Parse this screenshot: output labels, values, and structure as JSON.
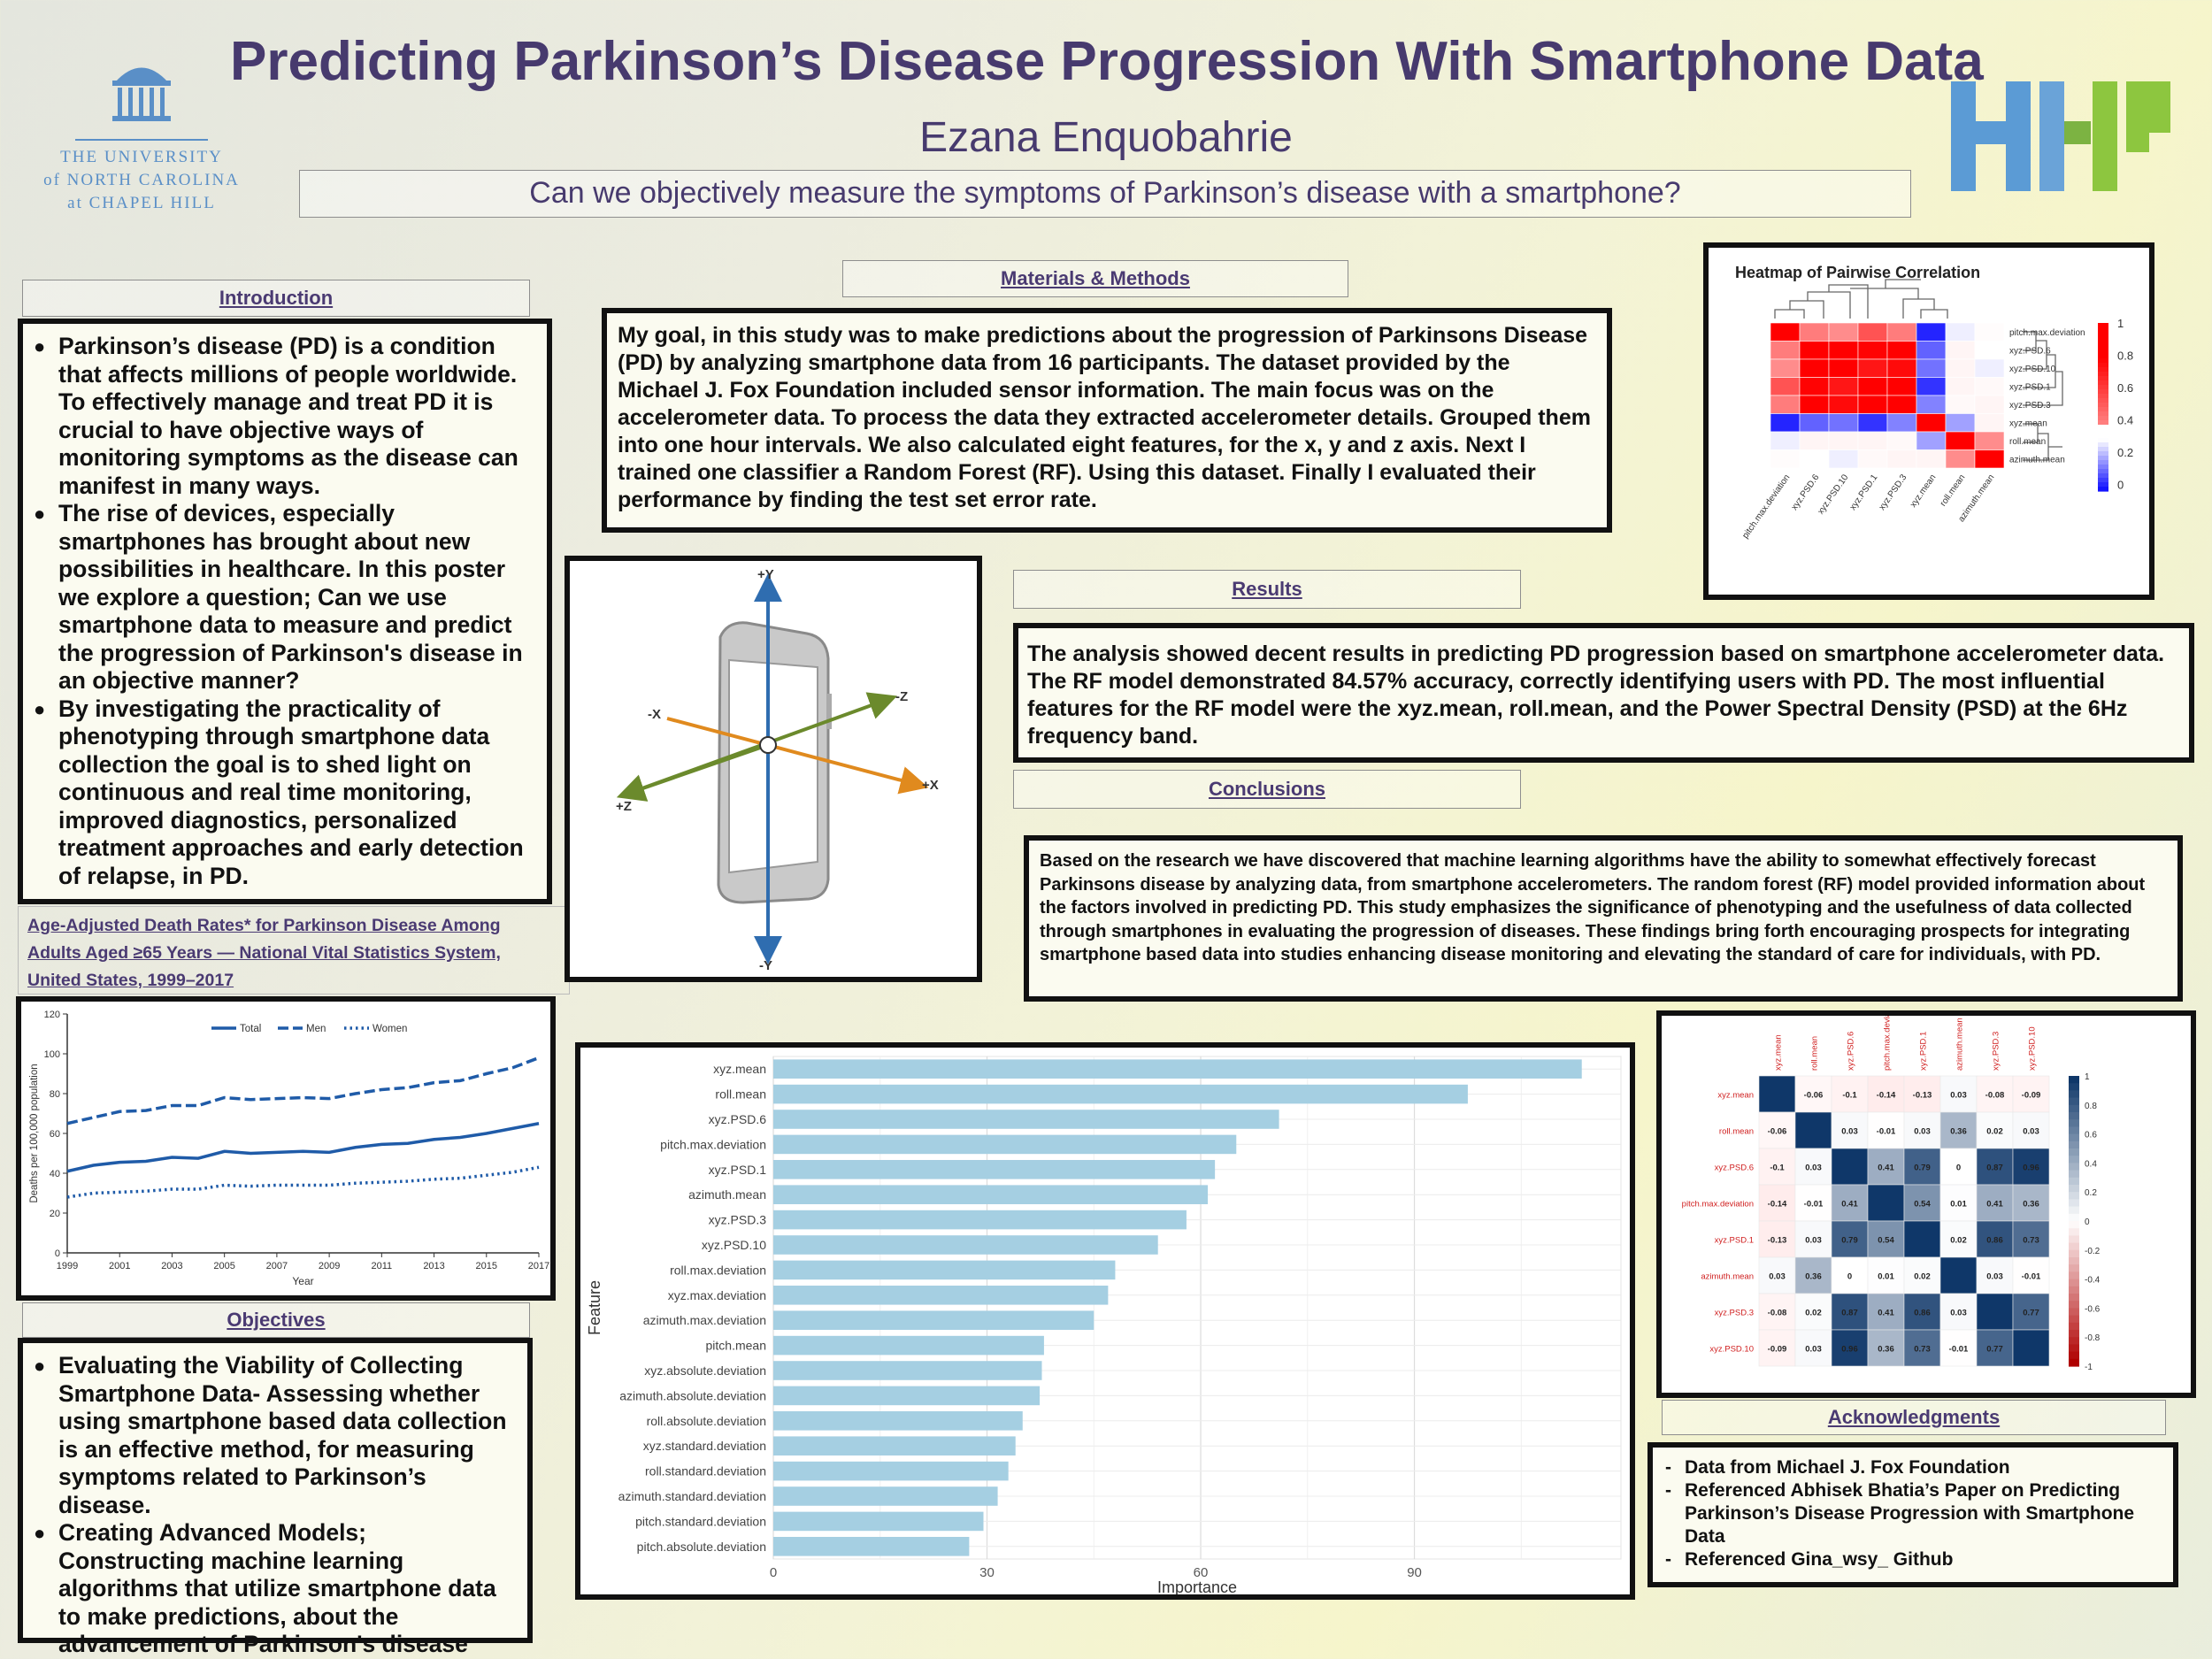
{
  "header": {
    "title": "Predicting Parkinson’s Disease Progression With Smartphone Data",
    "author": "Ezana Enquobahrie",
    "question": "Can we objectively measure the symptoms of Parkinson’s disease with a smartphone?",
    "unc_line1": "THE UNIVERSITY",
    "unc_line2": "of NORTH CAROLINA",
    "unc_line3": "at CHAPEL HILL",
    "colors": {
      "title": "#473a6e",
      "hhp_blue": "#5b9bd5",
      "hhp_green": "#8dc63f"
    }
  },
  "introduction": {
    "heading": "Introduction",
    "bullets": [
      "Parkinson’s disease (PD) is a condition that affects millions of people worldwide. To effectively manage and treat PD it is crucial to have objective ways of monitoring symptoms as the disease can manifest in many  ways.",
      "The rise of devices, especially smartphones has brought about new possibilities in healthcare. In this poster we explore a question; Can we use smartphone data to measure and predict the progression of Parkinson's disease in an objective manner?",
      "By investigating the practicality of phenotyping through smartphone data collection the goal is to shed light on continuous and real time monitoring, improved diagnostics, personalized treatment approaches and early detection of relapse, in PD."
    ]
  },
  "death_chart_caption": {
    "line1": "Age-Adjusted Death Rates* for Parkinson Disease Among",
    "line2": "Adults Aged ≥65 Years — National Vital Statistics System,",
    "line3": "United States, 1999–2017"
  },
  "materials": {
    "heading": "Materials & Methods",
    "text": "My goal, in this study was to make predictions about the progression of Parkinsons Disease (PD) by analyzing smartphone data from 16 participants. The dataset provided by the Michael J. Fox Foundation included sensor information. The main focus was on the accelerometer data. To process the data they extracted accelerometer details. Grouped them into one hour intervals. We also calculated eight features, for the x, y and z axis. Next I trained one classifier a  Random Forest (RF). Using this dataset. Finally I evaluated their performance by finding the test set error rate."
  },
  "phone_axes": {
    "y_top": "+Y",
    "y_bottom": "-Y",
    "x_left": "-X",
    "x_right": "+X",
    "z_left": "+Z",
    "z_right": "-Z"
  },
  "results": {
    "heading": "Results",
    "text": "The analysis showed decent results in predicting PD progression based on smartphone accelerometer data. The RF model demonstrated  84.57% accuracy, correctly identifying users with PD. The most influential features for the RF model were the xyz.mean, roll.mean, and the Power Spectral Density (PSD) at the 6Hz frequency band."
  },
  "conclusions": {
    "heading": "Conclusions",
    "text": "Based on the  research we have discovered that machine learning algorithms have the ability to somewhat  effectively forecast Parkinsons disease by analyzing data, from smartphone accelerometers. The random forest (RF) model provided information about the factors involved in predicting PD. This study emphasizes the significance of phenotyping and the usefulness of data collected through smartphones in evaluating the progression of diseases. These findings bring forth encouraging prospects for integrating smartphone based data into studies enhancing disease monitoring and elevating the standard of care for individuals, with PD."
  },
  "objectives": {
    "heading": "Objectives",
    "bullets": [
      "Evaluating the Viability of Collecting Smartphone Data- Assessing whether using smartphone based data collection is an effective method, for measuring symptoms related to Parkinson’s disease.",
      "Creating Advanced Models; Constructing machine learning algorithms that utilize smartphone data to make predictions, about the advancement of Parkinson's disease and its associated symptoms."
    ]
  },
  "acknowledgments": {
    "heading": "Acknowledgments",
    "items": [
      "Data from  Michael J. Fox Foundation",
      "Referenced Abhisek Bhatia’s Paper on Predicting Parkinson’s Disease Progression with Smartphone Data",
      "Referenced Gina_wsy_ Github"
    ]
  },
  "chart_data": [
    {
      "type": "line",
      "title": "",
      "xlabel": "Year",
      "ylabel": "Deaths per 100,000 population",
      "x": [
        1999,
        2000,
        2001,
        2002,
        2003,
        2004,
        2005,
        2006,
        2007,
        2008,
        2009,
        2010,
        2011,
        2012,
        2013,
        2014,
        2015,
        2016,
        2017
      ],
      "xticks": [
        1999,
        2001,
        2003,
        2005,
        2007,
        2009,
        2011,
        2013,
        2015,
        2017
      ],
      "yticks": [
        0,
        20,
        40,
        60,
        80,
        100,
        120
      ],
      "ylim": [
        0,
        120
      ],
      "legend_position": "top",
      "series": [
        {
          "name": "Total",
          "style": "solid",
          "values": [
            41,
            44,
            45.5,
            46,
            48,
            47.5,
            51,
            50,
            50.5,
            51,
            50.5,
            53,
            54.5,
            55,
            57,
            58,
            60,
            62.5,
            65
          ]
        },
        {
          "name": "Men",
          "style": "dashed",
          "values": [
            65,
            68,
            71,
            71.5,
            74,
            74,
            78,
            77,
            77.5,
            78,
            77.5,
            80,
            82,
            83,
            85.5,
            86.5,
            90,
            93,
            98
          ]
        },
        {
          "name": "Women",
          "style": "dotted",
          "values": [
            28,
            30,
            30.5,
            31,
            32,
            32,
            34,
            33.5,
            34,
            34,
            34,
            35,
            35.5,
            36,
            37,
            37.5,
            39,
            40.5,
            43
          ]
        }
      ],
      "colors": {
        "line": "#1f5ba8"
      }
    },
    {
      "type": "bar",
      "orientation": "horizontal",
      "xlabel": "Importance",
      "ylabel": "Feature",
      "xticks": [
        0,
        30,
        60,
        90
      ],
      "xlim": [
        0,
        119
      ],
      "categories": [
        "xyz.mean",
        "roll.mean",
        "xyz.PSD.6",
        "pitch.max.deviation",
        "xyz.PSD.1",
        "azimuth.mean",
        "xyz.PSD.3",
        "xyz.PSD.10",
        "roll.max.deviation",
        "xyz.max.deviation",
        "azimuth.max.deviation",
        "pitch.mean",
        "xyz.absolute.deviation",
        "azimuth.absolute.deviation",
        "roll.absolute.deviation",
        "xyz.standard.deviation",
        "roll.standard.deviation",
        "azimuth.standard.deviation",
        "pitch.standard.deviation",
        "pitch.absolute.deviation"
      ],
      "values": [
        113.5,
        97.5,
        71,
        65,
        62,
        61,
        58,
        54,
        48,
        47,
        45,
        38,
        37.7,
        37.4,
        35,
        34,
        33,
        31.5,
        29.5,
        27.5
      ],
      "colors": {
        "bar": "#a5cfe2"
      }
    },
    {
      "type": "heatmap",
      "title": "Heatmap of Pairwise Correlation",
      "rows": [
        "pitch.max.deviation",
        "xyz.PSD.6",
        "xyz.PSD.10",
        "xyz.PSD.1",
        "xyz.PSD.3",
        "xyz.mean",
        "roll.mean",
        "azimuth.mean"
      ],
      "cols": [
        "pitch.max.deviation",
        "xyz.PSD.6",
        "xyz.PSD.10",
        "xyz.PSD.1",
        "xyz.PSD.3",
        "xyz.mean",
        "roll.mean",
        "azimuth.mean"
      ],
      "values": [
        [
          1,
          0.41,
          0.36,
          0.54,
          0.41,
          -0.14,
          -0.01,
          0.01
        ],
        [
          0.41,
          1,
          0.96,
          0.79,
          0.87,
          -0.1,
          0.03,
          0
        ],
        [
          0.36,
          0.96,
          1,
          0.73,
          0.77,
          -0.09,
          0.03,
          -0.01
        ],
        [
          0.54,
          0.79,
          0.73,
          1,
          0.86,
          -0.13,
          0.03,
          0.02
        ],
        [
          0.41,
          0.87,
          0.77,
          0.86,
          1,
          -0.08,
          0.02,
          0.03
        ],
        [
          -0.14,
          -0.1,
          -0.09,
          -0.13,
          -0.08,
          1,
          -0.06,
          0.03
        ],
        [
          -0.01,
          0.03,
          0.03,
          0.03,
          0.02,
          -0.06,
          1,
          0.36
        ],
        [
          0.01,
          0,
          -0.01,
          0.02,
          0.03,
          0.03,
          0.36,
          1
        ]
      ],
      "legend_ticks": [
        "1",
        "0.8",
        "0.6",
        "0.4",
        "0.2",
        "0"
      ]
    },
    {
      "type": "heatmap",
      "title": "",
      "labels": [
        "xyz.mean",
        "roll.mean",
        "xyz.PSD.6",
        "pitch.max.deviation",
        "xyz.PSD.1",
        "azimuth.mean",
        "xyz.PSD.3",
        "xyz.PSD.10"
      ],
      "values": [
        [
          1,
          -0.06,
          -0.1,
          -0.14,
          -0.13,
          0.03,
          -0.08,
          -0.09
        ],
        [
          -0.06,
          1,
          0.03,
          -0.01,
          0.03,
          0.36,
          0.02,
          0.03
        ],
        [
          -0.1,
          0.03,
          1,
          0.41,
          0.79,
          0,
          0.87,
          0.96
        ],
        [
          -0.14,
          -0.01,
          0.41,
          1,
          0.54,
          0.01,
          0.41,
          0.36
        ],
        [
          -0.13,
          0.03,
          0.79,
          0.54,
          1,
          0.02,
          0.86,
          0.73
        ],
        [
          0.03,
          0.36,
          0,
          0.01,
          0.02,
          1,
          0.03,
          -0.01
        ],
        [
          -0.08,
          0.02,
          0.87,
          0.41,
          0.86,
          0.03,
          1,
          0.77
        ],
        [
          -0.09,
          0.03,
          0.96,
          0.36,
          0.73,
          -0.01,
          0.77,
          1
        ]
      ],
      "legend_ticks": [
        "1",
        "0.8",
        "0.6",
        "0.4",
        "0.2",
        "0",
        "-0.2",
        "-0.4",
        "-0.6",
        "-0.8",
        "-1"
      ]
    }
  ]
}
